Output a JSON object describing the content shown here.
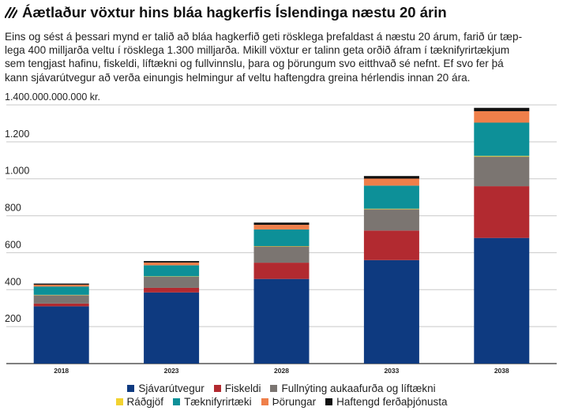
{
  "header": {
    "title": "Áætlaður vöxtur hins bláa hagkerfis Íslendinga næstu 20 árin",
    "description_lines": [
      "Eins og sést á þessari mynd er talið að bláa hagkerfið geti rösklega þrefaldast á næstu 20 árum, farið úr tæp-",
      "lega 400 milljarða veltu í rösklega 1.300 milljarða. Mikill vöxtur er talinn geta orðið áfram í tæknifyrirtækjum",
      "sem tengjast hafinu, fiskeldi, líftækni og fullvinnslu, þara og þörungum svo eitthvað sé nefnt. Ef svo fer þá",
      "kann sjávarútvegur að verða einungis helmingur af veltu haftengdra greina hérlendis innan 20 ára."
    ]
  },
  "chart_data": {
    "type": "bar",
    "stacked": true,
    "categories": [
      "2018",
      "2023",
      "2028",
      "2033",
      "2038"
    ],
    "y_tick_labels": [
      "200",
      "400",
      "600",
      "800",
      "1.000",
      "1.200",
      "1.400.000.000.000 kr."
    ],
    "y_ticks": [
      200,
      400,
      600,
      800,
      1000,
      1200,
      1400
    ],
    "ylim": [
      0,
      1400
    ],
    "grid": true,
    "legend_position": "bottom",
    "series": [
      {
        "name": "Sjávarútvegur",
        "color": "#0e3a80",
        "values": [
          310,
          385,
          458,
          560,
          680
        ]
      },
      {
        "name": "Fiskeldi",
        "color": "#b22a30",
        "values": [
          15,
          25,
          88,
          160,
          280
        ]
      },
      {
        "name": "Fullnýting aukaafurða og líftækni",
        "color": "#7b7571",
        "values": [
          45,
          60,
          88,
          115,
          160
        ]
      },
      {
        "name": "Ráðgjöf",
        "color": "#f2d230",
        "values": [
          2,
          2,
          2,
          3,
          4
        ]
      },
      {
        "name": "Tæknifyrirtæki",
        "color": "#0d9098",
        "values": [
          45,
          60,
          90,
          125,
          180
        ]
      },
      {
        "name": "Þörungar",
        "color": "#ef7f4a",
        "values": [
          10,
          15,
          25,
          38,
          62
        ]
      },
      {
        "name": "Haftengd ferðaþjónusta",
        "color": "#111111",
        "values": [
          6,
          8,
          12,
          14,
          18
        ]
      }
    ]
  }
}
